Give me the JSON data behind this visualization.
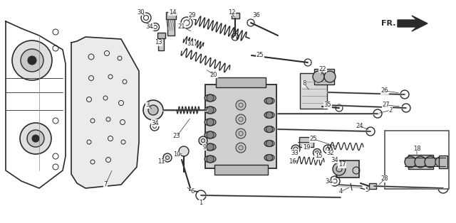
{
  "bg_color": "#ffffff",
  "line_color": "#2a2a2a",
  "fig_width": 6.4,
  "fig_height": 3.14,
  "dpi": 100
}
